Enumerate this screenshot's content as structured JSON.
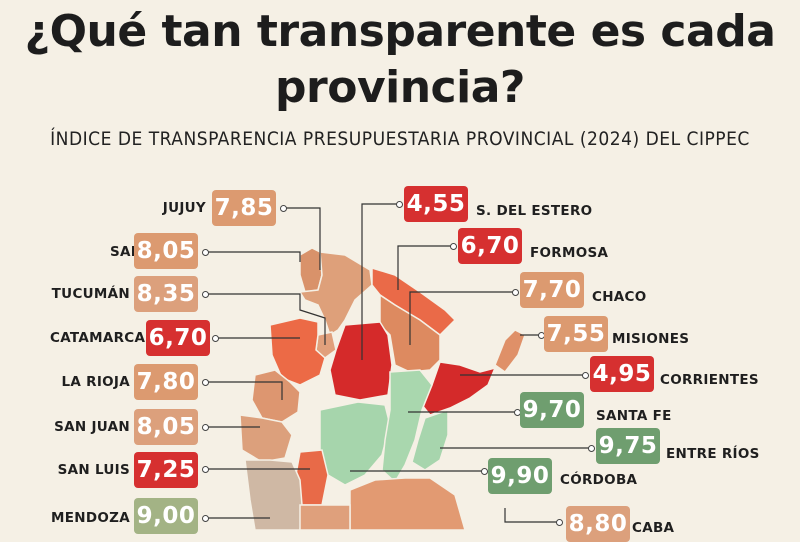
{
  "title_line1": "¿Qué tan transparente es cada",
  "title_line2": "provincia?",
  "subtitle": "ÍNDICE DE TRANSPARENCIA PRESUPUESTARIA PROVINCIAL (2024) DEL CIPPEC",
  "colors": {
    "low": "#d42a2a",
    "mid_low": "#ec6a4a",
    "mid": "#e0956a",
    "mid_high": "#cfa78b",
    "high": "#a8d4ae",
    "badge_high": "#6f9e6f"
  },
  "provinces": [
    {
      "name": "JUJUY",
      "value": "7,85"
    },
    {
      "name": "S. DEL ESTERO",
      "value": "4,55"
    },
    {
      "name": "SALTA",
      "value": "8,05"
    },
    {
      "name": "FORMOSA",
      "value": "6,70"
    },
    {
      "name": "TUCUMÁN",
      "value": "8,35"
    },
    {
      "name": "CHACO",
      "value": "7,70"
    },
    {
      "name": "CATAMARCA",
      "value": "6,70"
    },
    {
      "name": "MISIONES",
      "value": "7,55"
    },
    {
      "name": "LA RIOJA",
      "value": "7,80"
    },
    {
      "name": "CORRIENTES",
      "value": "4,95"
    },
    {
      "name": "SANTA FE",
      "value": "9,70"
    },
    {
      "name": "SAN JUAN",
      "value": "8,05"
    },
    {
      "name": "ENTRE RÍOS",
      "value": "9,75"
    },
    {
      "name": "SAN LUIS",
      "value": "7,25"
    },
    {
      "name": "CÓRDOBA",
      "value": "9,90"
    },
    {
      "name": "MENDOZA",
      "value": "9,00"
    },
    {
      "name": "CABA",
      "value": "8,80"
    }
  ]
}
